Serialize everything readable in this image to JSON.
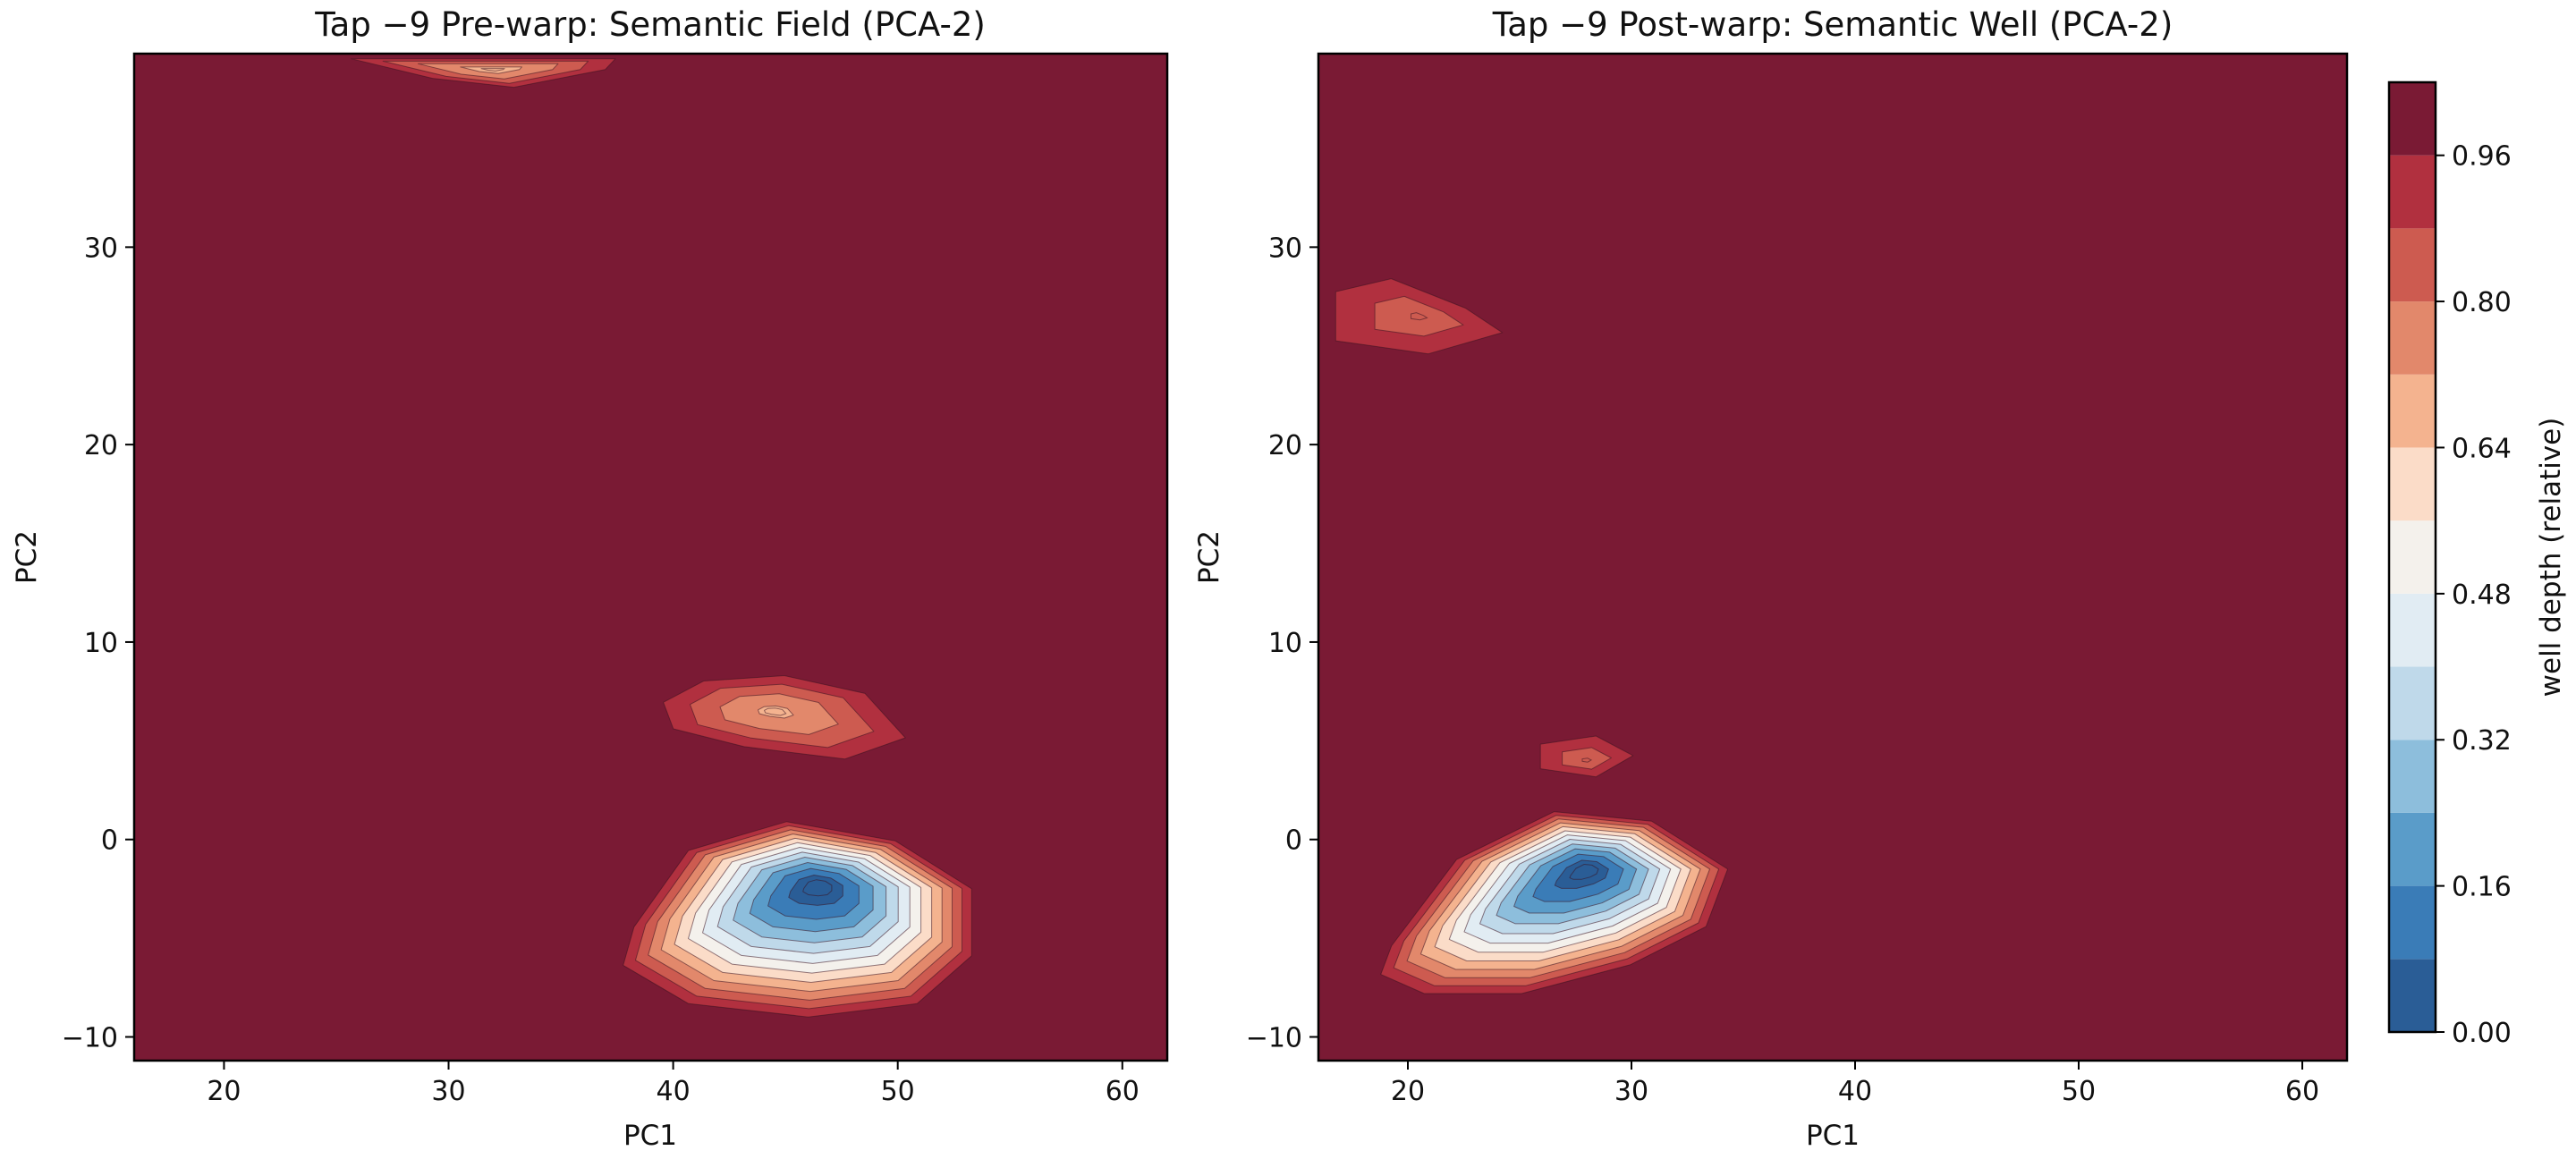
{
  "chart_data": [
    {
      "type": "contour",
      "title": "Tap −9 Pre-warp: Semantic Field (PCA-2)",
      "xlabel": "PC1",
      "ylabel": "PC2",
      "xlim": [
        16,
        62
      ],
      "ylim": [
        -11.2,
        39.8
      ],
      "xticks": [
        20,
        30,
        40,
        50,
        60
      ],
      "yticks": [
        -10,
        0,
        10,
        20,
        30
      ],
      "background_value": 1.0,
      "features": [
        {
          "label": "main well",
          "center": [
            46.5,
            -2.3
          ],
          "min_depth": 0.0,
          "polygon": [
            [
              38.0,
              -4.5
            ],
            [
              40.5,
              -0.5
            ],
            [
              45.0,
              1.0
            ],
            [
              50.0,
              0.0
            ],
            [
              53.5,
              -2.5
            ],
            [
              53.5,
              -6.0
            ],
            [
              51.0,
              -8.5
            ],
            [
              46.0,
              -9.2
            ],
            [
              40.5,
              -8.5
            ],
            [
              37.5,
              -6.5
            ]
          ]
        },
        {
          "label": "secondary basin",
          "center": [
            44.5,
            6.5
          ],
          "min_depth": 0.7,
          "polygon": [
            [
              39.0,
              7.0
            ],
            [
              41.0,
              8.2
            ],
            [
              45.0,
              8.5
            ],
            [
              49.0,
              7.5
            ],
            [
              51.0,
              5.0
            ],
            [
              48.0,
              3.8
            ],
            [
              43.0,
              4.5
            ],
            [
              39.5,
              5.5
            ]
          ]
        },
        {
          "label": "top edge basin",
          "center": [
            32.0,
            39.0
          ],
          "min_depth": 0.68,
          "polygon": [
            [
              25.0,
              39.6
            ],
            [
              29.0,
              38.5
            ],
            [
              33.0,
              38.0
            ],
            [
              37.5,
              39.0
            ],
            [
              38.0,
              39.6
            ]
          ]
        }
      ]
    },
    {
      "type": "contour",
      "title": "Tap −9 Post-warp: Semantic Well (PCA-2)",
      "xlabel": "PC1",
      "ylabel": "PC2",
      "xlim": [
        16,
        62
      ],
      "ylim": [
        -11.2,
        39.8
      ],
      "xticks": [
        20,
        30,
        40,
        50,
        60
      ],
      "yticks": [
        -10,
        0,
        10,
        20,
        30
      ],
      "background_value": 1.0,
      "features": [
        {
          "label": "main well",
          "center": [
            28.0,
            -1.5
          ],
          "min_depth": 0.0,
          "polygon": [
            [
              19.0,
              -5.5
            ],
            [
              22.0,
              -1.0
            ],
            [
              26.5,
              1.5
            ],
            [
              31.0,
              1.0
            ],
            [
              34.5,
              -1.5
            ],
            [
              33.5,
              -4.5
            ],
            [
              30.0,
              -6.5
            ],
            [
              25.0,
              -8.0
            ],
            [
              20.5,
              -8.0
            ],
            [
              18.5,
              -7.0
            ]
          ]
        },
        {
          "label": "secondary basin",
          "center": [
            28.0,
            4.0
          ],
          "min_depth": 0.82,
          "polygon": [
            [
              25.5,
              5.0
            ],
            [
              28.5,
              5.5
            ],
            [
              30.5,
              4.3
            ],
            [
              28.5,
              3.0
            ],
            [
              25.5,
              3.5
            ]
          ]
        },
        {
          "label": "upper-left basin",
          "center": [
            20.5,
            26.5
          ],
          "min_depth": 0.82,
          "polygon": [
            [
              16.0,
              28.0
            ],
            [
              19.0,
              28.8
            ],
            [
              23.0,
              27.0
            ],
            [
              25.0,
              25.5
            ],
            [
              21.0,
              24.2
            ],
            [
              16.0,
              25.0
            ]
          ]
        }
      ]
    }
  ],
  "colorbar": {
    "label": "well depth (relative)",
    "tick_labels": [
      "0.00",
      "0.16",
      "0.32",
      "0.48",
      "0.64",
      "0.80",
      "0.96"
    ],
    "levels": [
      0.0,
      0.08,
      0.16,
      0.24,
      0.32,
      0.4,
      0.48,
      0.56,
      0.64,
      0.72,
      0.8,
      0.88,
      0.96,
      1.04
    ],
    "colors": [
      "#2a5d96",
      "#3a7cb7",
      "#5a9cc9",
      "#8dbedc",
      "#bfd9ea",
      "#e1ecf3",
      "#f4f1ec",
      "#fbdcc8",
      "#f4b38f",
      "#e2886b",
      "#cd5b50",
      "#b1303f",
      "#7a1a34"
    ]
  }
}
